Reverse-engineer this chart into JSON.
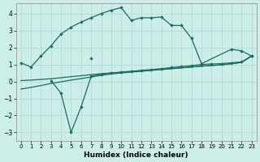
{
  "xlabel": "Humidex (Indice chaleur)",
  "bg_color": "#cceee8",
  "line_color": "#1a6b60",
  "grid_color": "#b8ddd8",
  "xlim": [
    -0.5,
    23.5
  ],
  "ylim": [
    -3.5,
    4.6
  ],
  "yticks": [
    -3,
    -2,
    -1,
    0,
    1,
    2,
    3,
    4
  ],
  "xticks": [
    0,
    1,
    2,
    3,
    4,
    5,
    6,
    7,
    8,
    9,
    10,
    11,
    12,
    13,
    14,
    15,
    16,
    17,
    18,
    19,
    20,
    21,
    22,
    23
  ],
  "line1_x": [
    0,
    1,
    2,
    3,
    4,
    5,
    6,
    7,
    8,
    9,
    10,
    11,
    12,
    13,
    14,
    15,
    16,
    17,
    18,
    21,
    22,
    23
  ],
  "line1_y": [
    1.1,
    0.85,
    1.5,
    2.1,
    2.8,
    3.2,
    3.5,
    3.75,
    4.0,
    4.2,
    4.35,
    3.6,
    3.75,
    3.75,
    3.8,
    3.3,
    3.3,
    2.55,
    1.05,
    1.9,
    1.8,
    1.5
  ],
  "line2_x": [
    3,
    4,
    5,
    6,
    7,
    8,
    9,
    10,
    11,
    12,
    13,
    14,
    15,
    16,
    17,
    18,
    19,
    20,
    21,
    22,
    23
  ],
  "line2_y": [
    0.05,
    -0.7,
    -3.0,
    -1.5,
    0.3,
    0.42,
    0.5,
    0.55,
    0.6,
    0.65,
    0.7,
    0.75,
    0.82,
    0.88,
    0.93,
    1.0,
    1.03,
    1.05,
    1.1,
    1.15,
    1.5
  ],
  "line3_x": [
    0,
    1,
    2,
    3,
    4,
    5,
    6,
    7,
    8,
    9,
    10,
    11,
    12,
    13,
    14,
    15,
    16,
    17,
    18,
    19,
    20,
    21,
    22,
    23
  ],
  "line3_y": [
    0.05,
    0.08,
    0.12,
    0.16,
    0.22,
    0.28,
    0.34,
    0.4,
    0.46,
    0.5,
    0.54,
    0.58,
    0.63,
    0.67,
    0.72,
    0.76,
    0.8,
    0.85,
    0.9,
    0.94,
    0.98,
    1.05,
    1.12,
    1.5
  ],
  "line4_x": [
    0,
    1,
    2,
    3,
    4,
    5,
    6,
    7,
    8,
    9,
    10,
    11,
    12,
    13,
    14,
    15,
    16,
    17,
    18,
    19,
    20,
    21,
    22,
    23
  ],
  "line4_y": [
    -0.45,
    -0.35,
    -0.24,
    -0.12,
    -0.02,
    0.08,
    0.17,
    0.26,
    0.36,
    0.44,
    0.5,
    0.55,
    0.6,
    0.65,
    0.7,
    0.75,
    0.8,
    0.85,
    0.9,
    0.94,
    0.98,
    1.05,
    1.12,
    1.5
  ],
  "isolated_x": [
    7
  ],
  "isolated_y": [
    1.35
  ]
}
